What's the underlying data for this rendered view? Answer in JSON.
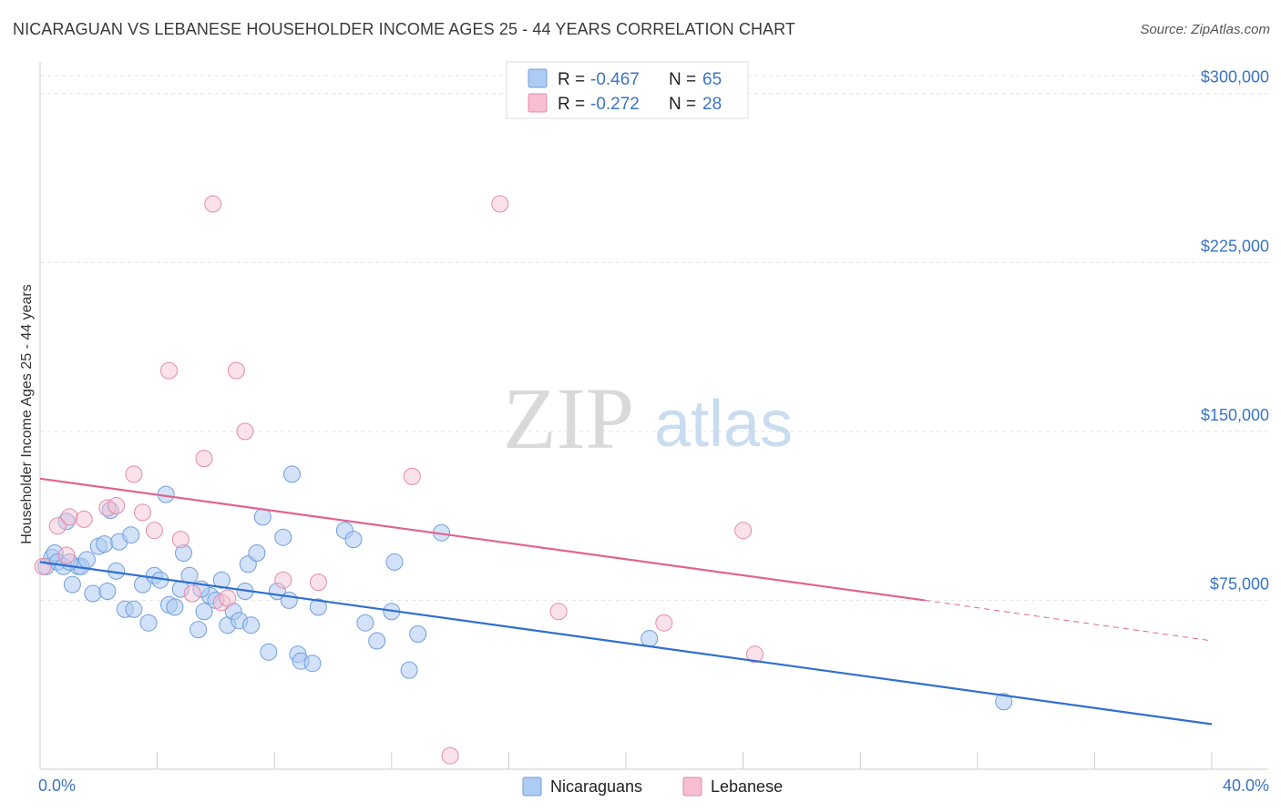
{
  "title": "NICARAGUAN VS LEBANESE HOUSEHOLDER INCOME AGES 25 - 44 YEARS CORRELATION CHART",
  "source": "Source: ZipAtlas.com",
  "watermark": {
    "zip": "ZIP",
    "atlas": "atlas"
  },
  "legend_top": [
    {
      "r_label": "R = ",
      "r_value": "-0.467",
      "n_label": "N = ",
      "n_value": "65",
      "color": "#aecbf2",
      "border": "#6f9fdc"
    },
    {
      "r_label": "R = ",
      "r_value": "-0.272",
      "n_label": "N = ",
      "n_value": "28",
      "color": "#f7bfd1",
      "border": "#e48aa9"
    }
  ],
  "legend_bottom": [
    {
      "label": "Nicaraguans",
      "color": "#aecbf2",
      "border": "#6f9fdc"
    },
    {
      "label": "Lebanese",
      "color": "#f7bfd1",
      "border": "#e48aa9"
    }
  ],
  "chart_data": {
    "type": "scatter",
    "title": "NICARAGUAN VS LEBANESE HOUSEHOLDER INCOME AGES 25 - 44 YEARS CORRELATION CHART",
    "xlabel": "",
    "ylabel": "Householder Income Ages 25 - 44 years",
    "xlim": [
      0,
      40
    ],
    "ylim": [
      0,
      310000
    ],
    "x_tick_labels": [
      {
        "value": 0,
        "label": "0.0%"
      },
      {
        "value": 40,
        "label": "40.0%"
      }
    ],
    "y_ticks": [
      {
        "value": 75000,
        "label": "$75,000"
      },
      {
        "value": 150000,
        "label": "$150,000"
      },
      {
        "value": 225000,
        "label": "$225,000"
      },
      {
        "value": 300000,
        "label": "$300,000"
      }
    ],
    "grid": true,
    "legend_position": "top-center",
    "series": [
      {
        "name": "Nicaraguans",
        "color": "#6f9fdc",
        "fill": "#aecbf2",
        "trend": {
          "x0": 0,
          "y0": 92000,
          "x1": 40,
          "y1": 20000,
          "color": "#2f6fce"
        },
        "points": [
          [
            0.2,
            90000
          ],
          [
            0.4,
            94000
          ],
          [
            0.5,
            96000
          ],
          [
            0.6,
            92000
          ],
          [
            0.8,
            90000
          ],
          [
            0.9,
            110000
          ],
          [
            1.1,
            82000
          ],
          [
            1.3,
            90000
          ],
          [
            1.4,
            90000
          ],
          [
            1.6,
            93000
          ],
          [
            1.8,
            78000
          ],
          [
            2.0,
            99000
          ],
          [
            2.2,
            100000
          ],
          [
            2.3,
            79000
          ],
          [
            2.4,
            115000
          ],
          [
            2.6,
            88000
          ],
          [
            2.7,
            101000
          ],
          [
            2.9,
            71000
          ],
          [
            3.1,
            104000
          ],
          [
            3.2,
            71000
          ],
          [
            3.5,
            82000
          ],
          [
            3.7,
            65000
          ],
          [
            3.9,
            86000
          ],
          [
            4.1,
            84000
          ],
          [
            4.3,
            122000
          ],
          [
            4.4,
            73000
          ],
          [
            4.6,
            72000
          ],
          [
            4.8,
            80000
          ],
          [
            4.9,
            96000
          ],
          [
            5.1,
            86000
          ],
          [
            5.4,
            62000
          ],
          [
            5.6,
            70000
          ],
          [
            5.8,
            77000
          ],
          [
            6.0,
            75000
          ],
          [
            6.2,
            84000
          ],
          [
            6.4,
            64000
          ],
          [
            6.6,
            70000
          ],
          [
            6.8,
            66000
          ],
          [
            7.0,
            79000
          ],
          [
            7.1,
            91000
          ],
          [
            7.2,
            64000
          ],
          [
            7.4,
            96000
          ],
          [
            7.6,
            112000
          ],
          [
            7.8,
            52000
          ],
          [
            8.1,
            79000
          ],
          [
            8.3,
            103000
          ],
          [
            8.5,
            75000
          ],
          [
            8.6,
            131000
          ],
          [
            8.8,
            51000
          ],
          [
            8.9,
            48000
          ],
          [
            9.3,
            47000
          ],
          [
            9.5,
            72000
          ],
          [
            10.4,
            106000
          ],
          [
            10.7,
            102000
          ],
          [
            11.1,
            65000
          ],
          [
            11.5,
            57000
          ],
          [
            12.0,
            70000
          ],
          [
            12.1,
            92000
          ],
          [
            12.6,
            44000
          ],
          [
            12.9,
            60000
          ],
          [
            13.7,
            105000
          ],
          [
            20.8,
            58000
          ],
          [
            32.9,
            30000
          ],
          [
            5.5,
            80000
          ],
          [
            1.0,
            92000
          ]
        ]
      },
      {
        "name": "Lebanese",
        "color": "#e48aa9",
        "fill": "#f7bfd1",
        "trend": {
          "x0": 0,
          "y0": 129000,
          "x1": 30.2,
          "y1": 75000,
          "x2": 40,
          "y2": 57000,
          "color": "#e0648e"
        },
        "points": [
          [
            0.1,
            90000
          ],
          [
            0.6,
            108000
          ],
          [
            0.9,
            95000
          ],
          [
            1.0,
            112000
          ],
          [
            1.5,
            111000
          ],
          [
            2.3,
            116000
          ],
          [
            2.6,
            117000
          ],
          [
            3.2,
            131000
          ],
          [
            3.5,
            114000
          ],
          [
            3.9,
            106000
          ],
          [
            4.4,
            177000
          ],
          [
            4.8,
            102000
          ],
          [
            5.2,
            78000
          ],
          [
            5.6,
            138000
          ],
          [
            5.9,
            251000
          ],
          [
            6.2,
            74000
          ],
          [
            6.4,
            76000
          ],
          [
            6.7,
            177000
          ],
          [
            7.0,
            150000
          ],
          [
            8.3,
            84000
          ],
          [
            9.5,
            83000
          ],
          [
            12.7,
            130000
          ],
          [
            14.0,
            6000
          ],
          [
            15.7,
            251000
          ],
          [
            17.7,
            70000
          ],
          [
            21.3,
            65000
          ],
          [
            24.0,
            106000
          ],
          [
            24.4,
            51000
          ]
        ]
      }
    ]
  }
}
